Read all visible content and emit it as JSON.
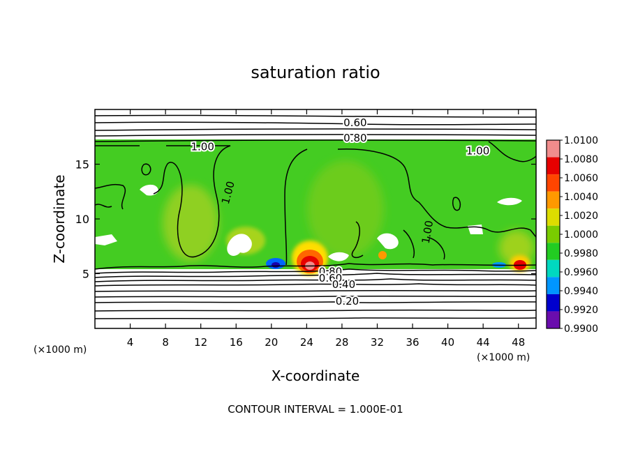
{
  "chart_data": {
    "type": "heatmap",
    "title": "saturation ratio",
    "xlabel": "X-coordinate",
    "ylabel": "Z-coordinate",
    "x_unit_left": "(×1000 m)",
    "x_unit_right": "(×1000 m)",
    "xlim": [
      0,
      50
    ],
    "ylim": [
      0,
      20
    ],
    "x_ticks": [
      4,
      8,
      12,
      16,
      20,
      24,
      28,
      32,
      36,
      40,
      44,
      48
    ],
    "y_ticks": [
      5,
      10,
      15
    ],
    "contour_interval_text": "CONTOUR INTERVAL = 1.000E-01",
    "colorbar": {
      "labels": [
        "1.0100",
        "1.0080",
        "1.0060",
        "1.0040",
        "1.0020",
        "1.0000",
        "0.9980",
        "0.9960",
        "0.9940",
        "0.9920",
        "0.9900"
      ],
      "colors": [
        "#f08c8c",
        "#e60000",
        "#ff4500",
        "#ff9900",
        "#dddd00",
        "#7acc00",
        "#22cc22",
        "#00d8c0",
        "#0096ff",
        "#0000cd",
        "#6a0dad"
      ]
    },
    "contour_labels": [
      {
        "text": "0.60",
        "x": 29.5,
        "y": 18.8
      },
      {
        "text": "0.80",
        "x": 29.5,
        "y": 17.4
      },
      {
        "text": "1.00",
        "x": 12.2,
        "y": 16.6
      },
      {
        "text": "1.00",
        "x": 43.4,
        "y": 16.2
      },
      {
        "text": "1.00",
        "x": 15.1,
        "y": 12.4
      },
      {
        "text": "1.00",
        "x": 37.7,
        "y": 8.8
      },
      {
        "text": "0.80",
        "x": 26.7,
        "y": 5.2
      },
      {
        "text": "0.60",
        "x": 26.7,
        "y": 4.6
      },
      {
        "text": "0.40",
        "x": 28.2,
        "y": 4.0
      },
      {
        "text": "0.20",
        "x": 28.6,
        "y": 2.5
      }
    ],
    "field_notes": {
      "saturated_region_z": [
        5.7,
        17.2
      ],
      "background_value": 1.0
    }
  }
}
